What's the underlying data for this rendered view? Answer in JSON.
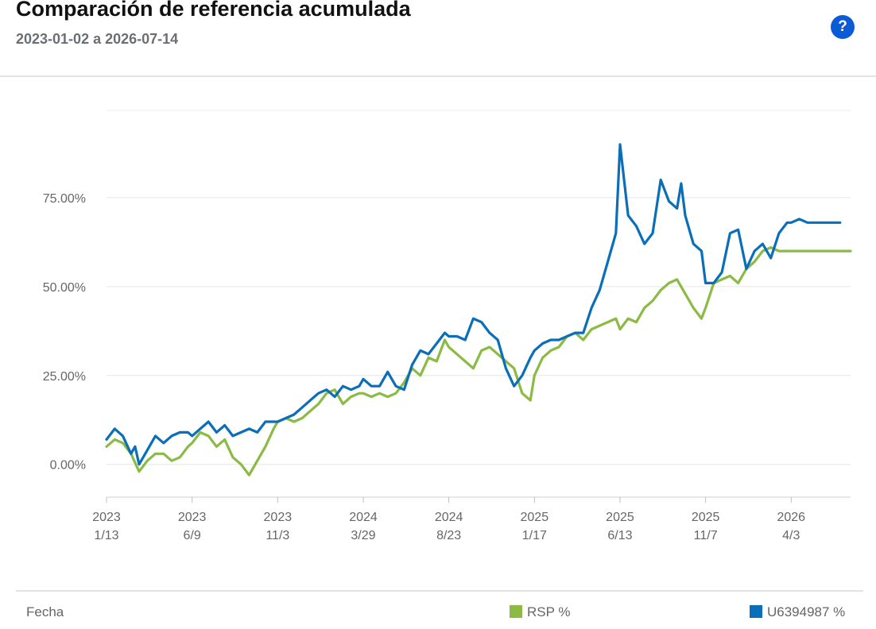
{
  "header": {
    "title": "Comparación de referencia acumulada",
    "subtitle": "2023-01-02 a 2026-07-14",
    "help_label": "?"
  },
  "footer": {
    "x_caption": "Fecha"
  },
  "chart_data": {
    "type": "line",
    "grid": "horizontal",
    "ylim": [
      -9,
      100
    ],
    "y_ticks": [
      0,
      25,
      50,
      75
    ],
    "y_tick_labels": [
      "0.00%",
      "25.00%",
      "50.00%",
      "75.00%"
    ],
    "x_ticks": [
      {
        "year": "2023",
        "date": "1/13"
      },
      {
        "year": "2023",
        "date": "6/9"
      },
      {
        "year": "2023",
        "date": "11/3"
      },
      {
        "year": "2024",
        "date": "3/29"
      },
      {
        "year": "2024",
        "date": "8/23"
      },
      {
        "year": "2025",
        "date": "1/17"
      },
      {
        "year": "2025",
        "date": "6/13"
      },
      {
        "year": "2025",
        "date": "11/7"
      },
      {
        "year": "2026",
        "date": "4/3"
      }
    ],
    "x_tick_dates": [
      "2023-01-13",
      "2023-06-09",
      "2023-11-03",
      "2024-03-29",
      "2024-08-23",
      "2025-01-17",
      "2025-06-13",
      "2025-11-07",
      "2026-04-03"
    ],
    "x_range": [
      "2023-01-13",
      "2026-07-14"
    ],
    "series": [
      {
        "name": "RSP %",
        "color": "#8bba45",
        "x": [
          "2023-01-13",
          "2023-01-27",
          "2023-02-10",
          "2023-02-24",
          "2023-03-10",
          "2023-03-24",
          "2023-04-07",
          "2023-04-21",
          "2023-05-05",
          "2023-05-19",
          "2023-06-02",
          "2023-06-09",
          "2023-06-23",
          "2023-07-07",
          "2023-07-21",
          "2023-08-04",
          "2023-08-18",
          "2023-09-01",
          "2023-09-15",
          "2023-09-29",
          "2023-10-13",
          "2023-10-27",
          "2023-11-03",
          "2023-11-17",
          "2023-12-01",
          "2023-12-15",
          "2023-12-29",
          "2024-01-12",
          "2024-01-26",
          "2024-02-09",
          "2024-02-23",
          "2024-03-08",
          "2024-03-22",
          "2024-03-29",
          "2024-04-12",
          "2024-04-26",
          "2024-05-10",
          "2024-05-24",
          "2024-06-07",
          "2024-06-21",
          "2024-07-05",
          "2024-07-19",
          "2024-08-02",
          "2024-08-16",
          "2024-08-23",
          "2024-09-06",
          "2024-09-20",
          "2024-10-04",
          "2024-10-18",
          "2024-11-01",
          "2024-11-15",
          "2024-11-29",
          "2024-12-13",
          "2024-12-27",
          "2025-01-10",
          "2025-01-17",
          "2025-01-31",
          "2025-02-14",
          "2025-02-28",
          "2025-03-14",
          "2025-03-28",
          "2025-04-11",
          "2025-04-25",
          "2025-05-09",
          "2025-05-23",
          "2025-06-06",
          "2025-06-13",
          "2025-06-27",
          "2025-07-11",
          "2025-07-25",
          "2025-08-08",
          "2025-08-22",
          "2025-09-05",
          "2025-09-19",
          "2025-10-03",
          "2025-10-17",
          "2025-10-31",
          "2025-11-07",
          "2025-11-21",
          "2025-12-05",
          "2025-12-19",
          "2026-01-02",
          "2026-01-16",
          "2026-01-30",
          "2026-02-13",
          "2026-02-27",
          "2026-03-13",
          "2026-03-27",
          "2026-04-03",
          "2026-04-17",
          "2026-05-01",
          "2026-05-15",
          "2026-05-29",
          "2026-06-12",
          "2026-06-26",
          "2026-07-14"
        ],
        "values": [
          5,
          7,
          6,
          3,
          -2,
          1,
          3,
          3,
          1,
          2,
          5,
          6,
          9,
          8,
          5,
          7,
          2,
          0,
          -3,
          1,
          5,
          10,
          12,
          13,
          12,
          13,
          15,
          17,
          20,
          21,
          17,
          19,
          20,
          20,
          19,
          20,
          19,
          20,
          23,
          27,
          25,
          30,
          29,
          35,
          33,
          31,
          29,
          27,
          32,
          33,
          31,
          29,
          27,
          20,
          18,
          25,
          30,
          32,
          33,
          36,
          37,
          35,
          38,
          39,
          40,
          41,
          38,
          41,
          40,
          44,
          46,
          49,
          51,
          52,
          48,
          44,
          41,
          44,
          51,
          52,
          53,
          51,
          55,
          57,
          60,
          61,
          60,
          60,
          60,
          60,
          60,
          60,
          60,
          60,
          60,
          60
        ],
        "values_note": ""
      },
      {
        "name": "U6394987 %",
        "color": "#0a6fb8",
        "x": [],
        "values": []
      }
    ]
  }
}
